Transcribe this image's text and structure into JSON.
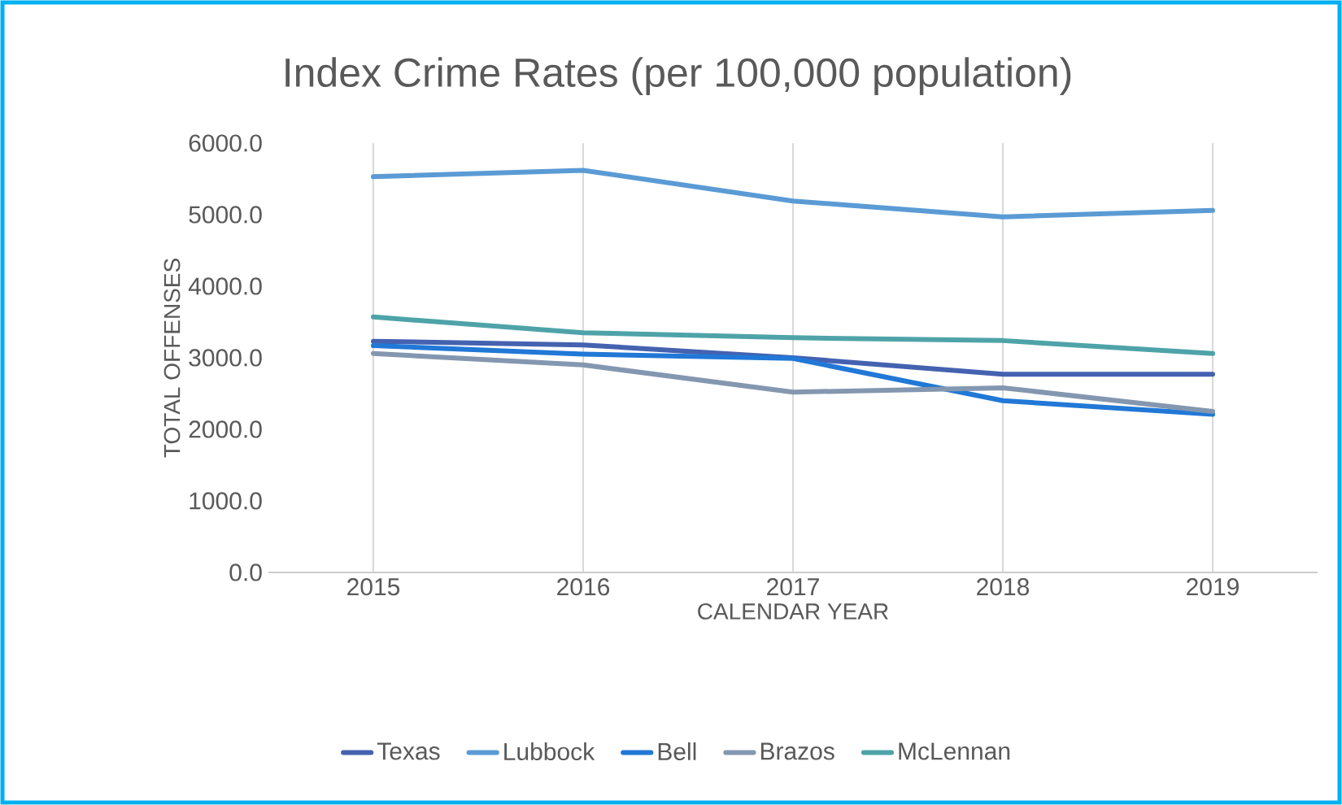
{
  "chart_data": {
    "type": "line",
    "title": "Index Crime Rates (per 100,000 population)",
    "xlabel": "CALENDAR YEAR",
    "ylabel": "TOTAL OFFENSES",
    "categories": [
      "2015",
      "2016",
      "2017",
      "2018",
      "2019"
    ],
    "ylim": [
      0,
      6000
    ],
    "yticks": [
      {
        "value": 0,
        "label": "0.0"
      },
      {
        "value": 1000,
        "label": "1000.0"
      },
      {
        "value": 2000,
        "label": "2000.0"
      },
      {
        "value": 3000,
        "label": "3000.0"
      },
      {
        "value": 4000,
        "label": "4000.0"
      },
      {
        "value": 5000,
        "label": "5000.0"
      },
      {
        "value": 6000,
        "label": "6000.0"
      }
    ],
    "grid": "x",
    "legend": "bottom",
    "marker": "none",
    "line_style": "solid",
    "series": [
      {
        "name": "Texas",
        "color": "#4462b0",
        "values": [
          3230,
          3180,
          3000,
          2770,
          2770
        ]
      },
      {
        "name": "Lubbock",
        "color": "#5b9bd5",
        "values": [
          5530,
          5620,
          5190,
          4970,
          5060
        ]
      },
      {
        "name": "Bell",
        "color": "#2178d6",
        "values": [
          3170,
          3050,
          2990,
          2400,
          2210
        ]
      },
      {
        "name": "Brazos",
        "color": "#8497b0",
        "values": [
          3060,
          2900,
          2520,
          2580,
          2250
        ]
      },
      {
        "name": "McLennan",
        "color": "#4ea3a8",
        "values": [
          3570,
          3350,
          3280,
          3240,
          3060
        ]
      }
    ]
  }
}
